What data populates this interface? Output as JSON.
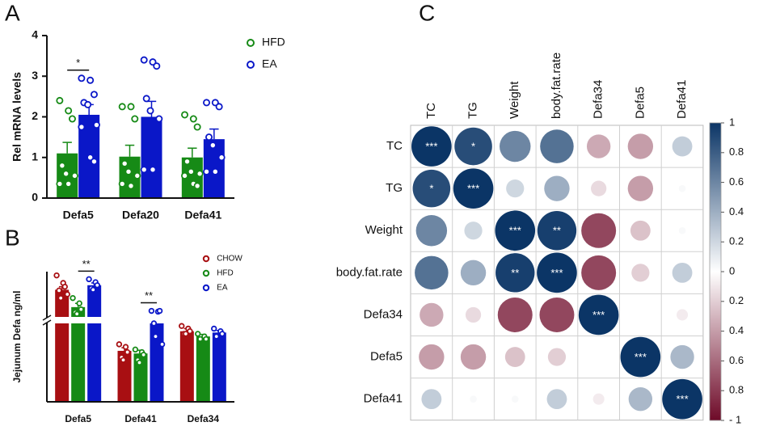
{
  "chart_data": [
    {
      "type": "bar",
      "panel": "A",
      "ylabel": "Rel mRNA levels",
      "categories": [
        "Defa5",
        "Defa20",
        "Defa41"
      ],
      "ylim": [
        0,
        4
      ],
      "yticks": [
        0,
        1,
        2,
        3,
        4
      ],
      "series": [
        {
          "name": "HFD",
          "color": "#168a16",
          "values": [
            1.1,
            1.02,
            1.0
          ],
          "errors": [
            0.27,
            0.28,
            0.23
          ],
          "points": [
            [
              2.4,
              2.15,
              1.95,
              0.8,
              0.6,
              0.55,
              0.35,
              0.35
            ],
            [
              2.25,
              2.25,
              1.95,
              0.85,
              0.65,
              0.55,
              0.35,
              0.3
            ],
            [
              2.05,
              1.95,
              1.75,
              0.9,
              0.65,
              0.6,
              0.55,
              0.35,
              0.3
            ]
          ]
        },
        {
          "name": "EA",
          "color": "#0a17c8",
          "values": [
            2.05,
            2.0,
            1.45
          ],
          "errors": [
            0.25,
            0.38,
            0.25
          ],
          "points": [
            [
              2.95,
              2.9,
              2.55,
              2.35,
              2.3,
              1.8,
              1.75,
              1.0,
              0.9
            ],
            [
              3.4,
              3.35,
              3.25,
              2.45,
              2.15,
              1.95,
              0.7,
              0.7
            ],
            [
              2.35,
              2.35,
              2.25,
              1.5,
              1.3,
              1.0,
              0.65,
              0.65
            ]
          ]
        }
      ],
      "significance": [
        "*",
        null,
        null
      ]
    },
    {
      "type": "bar",
      "panel": "B",
      "ylabel": "Jejunum Defa ng/ml",
      "categories": [
        "Defa5",
        "Defa41",
        "Defa34"
      ],
      "ylim": [
        0,
        11
      ],
      "ybreak": [
        3,
        5
      ],
      "series": [
        {
          "name": "CHOW",
          "color": "#a80f12",
          "values": [
            8.6,
            1.95,
            2.7
          ],
          "errors": [
            0.4,
            0.12,
            0.1
          ],
          "points": [
            [
              10.5,
              9.5,
              9.0,
              8.5,
              7.5,
              8.0
            ],
            [
              2.2,
              2.1,
              1.9,
              1.7,
              1.6
            ],
            [
              2.9,
              2.8,
              2.7,
              2.6,
              2.6
            ]
          ]
        },
        {
          "name": "HFD",
          "color": "#168a16",
          "values": [
            6.3,
            1.85,
            2.5
          ],
          "errors": [
            0.5,
            0.12,
            0.08
          ],
          "points": [
            [
              7.5,
              6.8,
              6.0,
              5.6,
              5.4
            ],
            [
              2.0,
              1.9,
              1.8,
              1.6,
              1.5
            ],
            [
              2.6,
              2.5,
              2.4,
              2.4
            ]
          ]
        },
        {
          "name": "EA",
          "color": "#0a17c8",
          "values": [
            9.2,
            3.0,
            2.65
          ],
          "errors": [
            0.3,
            0.5,
            0.08
          ],
          "points": [
            [
              10.0,
              9.6,
              9.2,
              8.8,
              8.6
            ],
            [
              5.8,
              5.7,
              5.8,
              3.0,
              2.5,
              2.2
            ],
            [
              2.8,
              2.7,
              2.6,
              2.5
            ]
          ]
        }
      ],
      "significance": [
        "**",
        "**",
        null
      ]
    },
    {
      "type": "correlation",
      "panel": "C",
      "labels": [
        "TC",
        "TG",
        "Weight",
        "body.fat.rate",
        "Defa34",
        "Defa5",
        "Defa41"
      ],
      "matrix": [
        [
          1,
          0.88,
          0.6,
          0.7,
          -0.35,
          -0.4,
          0.25
        ],
        [
          0.88,
          1,
          0.2,
          0.4,
          -0.15,
          -0.4,
          0.03
        ],
        [
          0.6,
          0.2,
          1,
          0.95,
          -0.75,
          -0.25,
          0.03
        ],
        [
          0.7,
          0.4,
          0.95,
          1,
          -0.75,
          -0.2,
          0.25
        ],
        [
          -0.35,
          -0.15,
          -0.75,
          -0.75,
          1,
          0,
          -0.08
        ],
        [
          -0.4,
          -0.4,
          -0.25,
          -0.2,
          0,
          1,
          0.35
        ],
        [
          0.25,
          0.03,
          0.03,
          0.25,
          -0.08,
          0.35,
          1
        ]
      ],
      "cell_labels": [
        [
          "***",
          "*",
          null,
          null,
          null,
          null,
          null
        ],
        [
          "*",
          "***",
          null,
          null,
          null,
          null,
          null
        ],
        [
          null,
          null,
          "***",
          "**",
          null,
          null,
          null
        ],
        [
          null,
          null,
          "**",
          "***",
          null,
          null,
          null
        ],
        [
          null,
          null,
          null,
          null,
          "***",
          null,
          null
        ],
        [
          null,
          null,
          null,
          null,
          null,
          "***",
          null
        ],
        [
          null,
          null,
          null,
          null,
          null,
          null,
          "***"
        ]
      ],
      "colormap": [
        "#6e0a28",
        "#ffffff",
        "#0b3566"
      ],
      "clim": [
        -1,
        1
      ],
      "cticks": [
        1,
        0.8,
        0.6,
        0.4,
        0.2,
        0,
        {
          "value": -0.2,
          "label": "0.2"
        },
        {
          "value": -0.4,
          "label": "0.4"
        },
        {
          "value": -0.6,
          "label": "0.6"
        },
        {
          "value": -0.8,
          "label": "0.8"
        },
        {
          "value": -1,
          "label": "- 1"
        }
      ]
    }
  ]
}
